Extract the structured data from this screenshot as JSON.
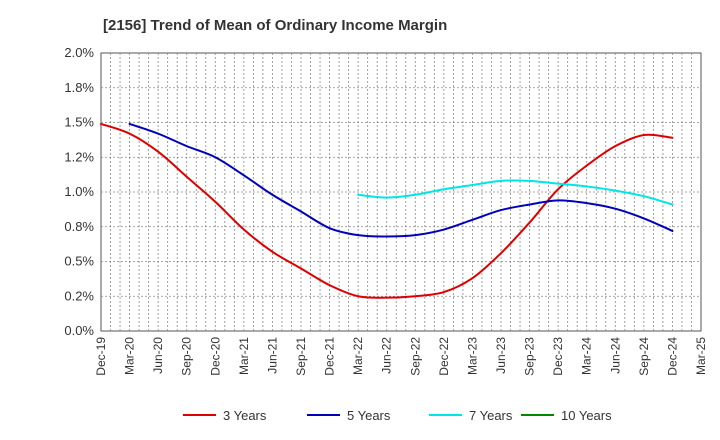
{
  "chart_data": {
    "type": "line",
    "title": "[2156]  Trend of Mean of Ordinary Income Margin",
    "xlabel": "",
    "ylabel": "",
    "ylim": [
      0,
      2.0
    ],
    "yticks": [
      "0.0%",
      "0.2%",
      "0.5%",
      "0.8%",
      "1.0%",
      "1.2%",
      "1.5%",
      "1.8%",
      "2.0%"
    ],
    "categories": [
      "Dec-19",
      "Mar-20",
      "Jun-20",
      "Sep-20",
      "Dec-20",
      "Mar-21",
      "Jun-21",
      "Sep-21",
      "Dec-21",
      "Mar-22",
      "Jun-22",
      "Sep-22",
      "Dec-22",
      "Mar-23",
      "Jun-23",
      "Sep-23",
      "Dec-23",
      "Mar-24",
      "Jun-24",
      "Sep-24",
      "Dec-24",
      "Mar-25"
    ],
    "grid": true,
    "legend_position": "bottom",
    "series": [
      {
        "name": "3 Years",
        "color": "#dd0000",
        "values": [
          1.49,
          1.42,
          1.29,
          1.11,
          0.93,
          0.73,
          0.57,
          0.45,
          0.33,
          0.25,
          0.24,
          0.25,
          0.28,
          0.38,
          0.56,
          0.78,
          1.02,
          1.19,
          1.33,
          1.41,
          1.39,
          null
        ]
      },
      {
        "name": "5 Years",
        "color": "#0000bb",
        "values": [
          null,
          1.49,
          1.42,
          1.33,
          1.25,
          1.12,
          0.98,
          0.86,
          0.74,
          0.69,
          0.68,
          0.69,
          0.73,
          0.8,
          0.87,
          0.91,
          0.94,
          0.92,
          0.88,
          0.81,
          0.72,
          null
        ]
      },
      {
        "name": "7 Years",
        "color": "#00e5e5",
        "values": [
          null,
          null,
          null,
          null,
          null,
          null,
          null,
          null,
          null,
          0.98,
          0.96,
          0.98,
          1.02,
          1.05,
          1.08,
          1.08,
          1.06,
          1.04,
          1.01,
          0.97,
          0.91,
          null
        ]
      },
      {
        "name": "10 Years",
        "color": "#008800",
        "values": [
          null,
          null,
          null,
          null,
          null,
          null,
          null,
          null,
          null,
          null,
          null,
          null,
          null,
          null,
          null,
          null,
          null,
          null,
          null,
          null,
          null,
          null
        ]
      }
    ]
  }
}
